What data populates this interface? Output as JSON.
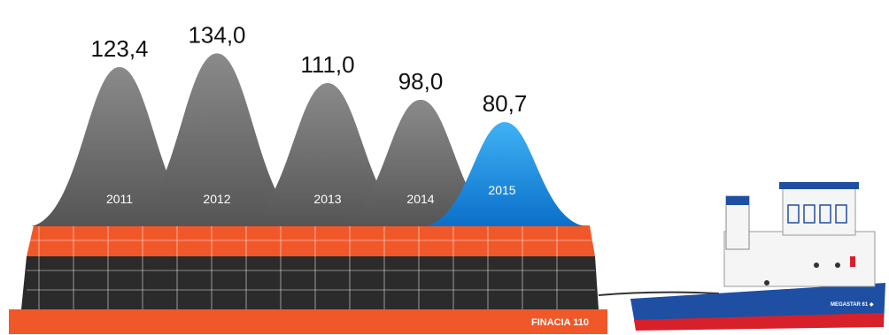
{
  "chart_data": {
    "type": "area",
    "categories": [
      "2011",
      "2012",
      "2013",
      "2014",
      "2015"
    ],
    "values": [
      123.4,
      134.0,
      111.0,
      98.0,
      80.7
    ],
    "value_labels": [
      "123,4",
      "134,0",
      "111,0",
      "98,0",
      "80,7"
    ],
    "title": "",
    "xlabel": "",
    "ylabel": "",
    "colors": [
      "#6f6f6f",
      "#6f6f6f",
      "#6f6f6f",
      "#6f6f6f",
      "#1a8fe0"
    ]
  },
  "barge": {
    "name": "FINACIA 110",
    "colors": {
      "orange": "#f0582a",
      "dark": "#2b2b2b"
    }
  },
  "ship": {
    "name": "MEGASTAR 61 ◆",
    "colors": {
      "hull": "#1e4fa3",
      "waterline": "#d8202a",
      "white": "#f5f5f5"
    }
  }
}
